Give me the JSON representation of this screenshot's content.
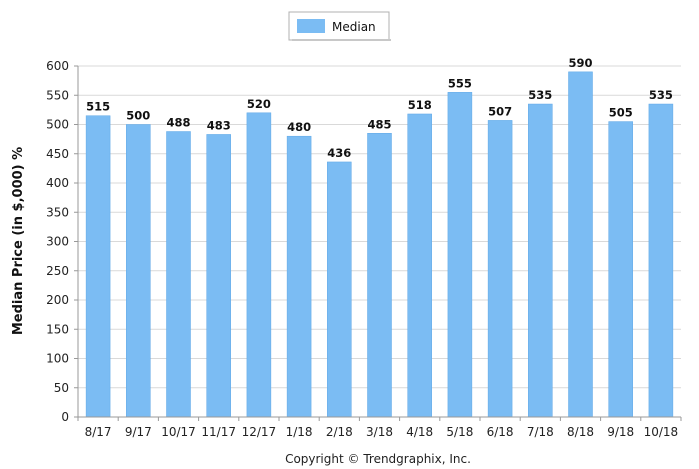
{
  "chart_data": {
    "type": "bar",
    "categories": [
      "8/17",
      "9/17",
      "10/17",
      "11/17",
      "12/17",
      "1/18",
      "2/18",
      "3/18",
      "4/18",
      "5/18",
      "6/18",
      "7/18",
      "8/18",
      "9/18",
      "10/18"
    ],
    "series": [
      {
        "name": "Median",
        "values": [
          515,
          500,
          488,
          483,
          520,
          480,
          436,
          485,
          518,
          555,
          507,
          535,
          590,
          505,
          535
        ]
      }
    ],
    "data_labels": [
      "515",
      "500",
      "488",
      "483",
      "520",
      "480",
      "436",
      "485",
      "518",
      "555",
      "507",
      "535",
      "590",
      "505",
      "535"
    ],
    "ylabel": "Median Price (in $,000) %",
    "xlabel": "",
    "ylim": [
      0,
      600
    ],
    "yticks": [
      0,
      50,
      100,
      150,
      200,
      250,
      300,
      350,
      400,
      450,
      500,
      550,
      600
    ],
    "ytick_labels": [
      "0",
      "50",
      "100",
      "150",
      "200",
      "250",
      "300",
      "350",
      "400",
      "450",
      "500",
      "550",
      "600"
    ],
    "grid": true,
    "legend": {
      "position": "top-center",
      "entries": [
        "Median"
      ]
    },
    "colors": {
      "bar": "#7bbcf3",
      "bar_stroke": "#5ea7e6",
      "grid": "#d9d9d9",
      "axis": "#999999"
    }
  },
  "footer": {
    "copyright": "Copyright © Trendgraphix, Inc."
  }
}
